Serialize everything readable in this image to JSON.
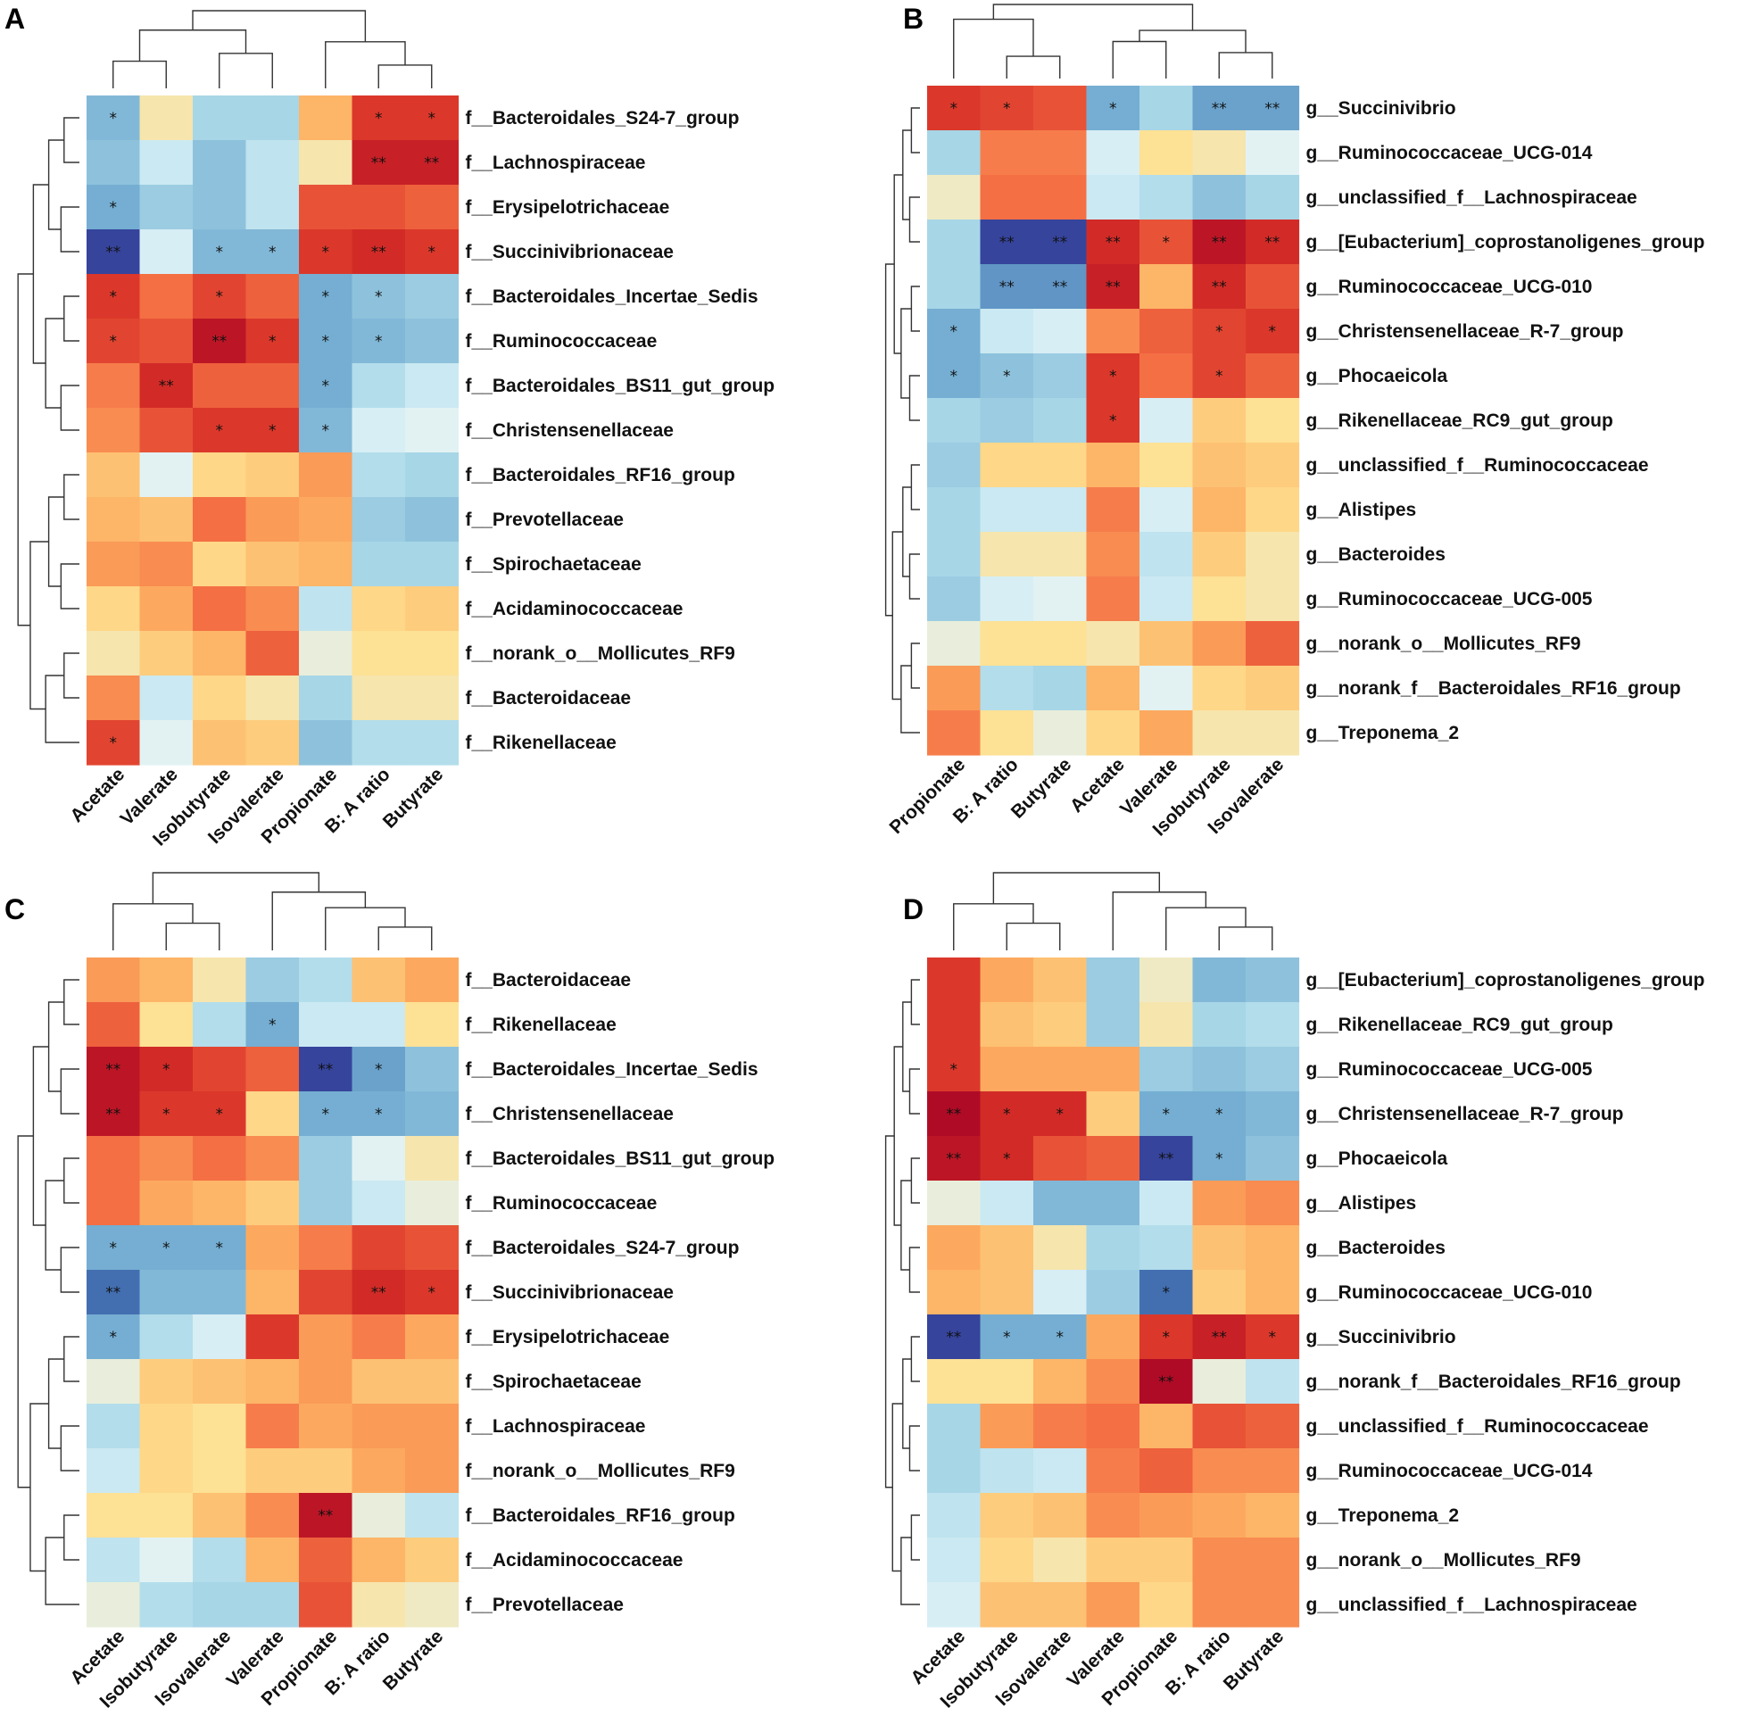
{
  "figure": {
    "colors": [
      "#313695",
      "#4575b4",
      "#74add1",
      "#abd9e9",
      "#e0f3f8",
      "#fee090",
      "#fdae61",
      "#f46d43",
      "#d73027",
      "#a50026"
    ]
  },
  "chart_data": [
    {
      "type": "heatmap",
      "letter": "A",
      "columns": [
        "Acetate",
        "Valerate",
        "Isobutyrate",
        "Isovalerate",
        "Propionate",
        "B: A ratio",
        "Butyrate"
      ],
      "rows": [
        "f__Bacteroidales_S24-7_group",
        "f__Lachnospiraceae",
        "f__Erysipelotrichaceae",
        "f__Succinivibrionaceae",
        "f__Bacteroidales_Incertae_Sedis",
        "f__Ruminococcaceae",
        "f__Bacteroidales_BS11_gut_group",
        "f__Christensenellaceae",
        "f__Bacteroidales_RF16_group",
        "f__Prevotellaceae",
        "f__Spirochaetaceae",
        "f__Acidaminococcaceae",
        "f__norank_o__Mollicutes_RF9",
        "f__Bacteroidaceae",
        "f__Rikenellaceae"
      ],
      "values": [
        [
          -0.5,
          0.05,
          -0.35,
          -0.35,
          0.3,
          0.75,
          0.75
        ],
        [
          -0.45,
          -0.2,
          -0.45,
          -0.25,
          0.05,
          0.85,
          0.85
        ],
        [
          -0.55,
          -0.4,
          -0.45,
          -0.25,
          0.65,
          0.65,
          0.6
        ],
        [
          -0.95,
          -0.15,
          -0.5,
          -0.5,
          0.75,
          0.8,
          0.75
        ],
        [
          0.75,
          0.55,
          0.7,
          0.6,
          -0.55,
          -0.45,
          -0.4
        ],
        [
          0.7,
          0.65,
          0.9,
          0.75,
          -0.55,
          -0.5,
          -0.45
        ],
        [
          0.5,
          0.8,
          0.6,
          0.6,
          -0.55,
          -0.3,
          -0.2
        ],
        [
          0.45,
          0.65,
          0.75,
          0.75,
          -0.5,
          -0.15,
          -0.1
        ],
        [
          0.25,
          -0.1,
          0.15,
          0.2,
          0.4,
          -0.3,
          -0.35
        ],
        [
          0.3,
          0.25,
          0.55,
          0.4,
          0.35,
          -0.4,
          -0.45
        ],
        [
          0.4,
          0.45,
          0.15,
          0.25,
          0.3,
          -0.35,
          -0.35
        ],
        [
          0.15,
          0.35,
          0.55,
          0.45,
          -0.25,
          0.15,
          0.2
        ],
        [
          0.05,
          0.2,
          0.3,
          0.6,
          -0.05,
          0.1,
          0.1
        ],
        [
          0.45,
          -0.2,
          0.15,
          0.05,
          -0.35,
          0.05,
          0.05
        ],
        [
          0.7,
          -0.1,
          0.25,
          0.2,
          -0.45,
          -0.3,
          -0.3
        ]
      ],
      "stars": [
        [
          "*",
          "",
          "",
          "",
          "",
          "*",
          "*"
        ],
        [
          "",
          "",
          "",
          "",
          "",
          "**",
          "**"
        ],
        [
          "*",
          "",
          "",
          "",
          "",
          "",
          ""
        ],
        [
          "**",
          "",
          "*",
          "*",
          "*",
          "**",
          "*"
        ],
        [
          "*",
          "",
          "*",
          "",
          "*",
          "*",
          ""
        ],
        [
          "*",
          "",
          "**",
          "*",
          "*",
          "*",
          ""
        ],
        [
          "",
          "**",
          "",
          "",
          "*",
          "",
          ""
        ],
        [
          "",
          "",
          "*",
          "*",
          "*",
          "",
          ""
        ],
        [
          "",
          "",
          "",
          "",
          "",
          "",
          ""
        ],
        [
          "",
          "",
          "",
          "",
          "",
          "",
          ""
        ],
        [
          "",
          "",
          "",
          "",
          "",
          "",
          ""
        ],
        [
          "",
          "",
          "",
          "",
          "",
          "",
          ""
        ],
        [
          "",
          "",
          "",
          "",
          "",
          "",
          ""
        ],
        [
          "",
          "",
          "",
          "",
          "",
          "",
          ""
        ],
        [
          "*",
          "",
          "",
          "",
          "",
          "",
          ""
        ]
      ]
    },
    {
      "type": "heatmap",
      "letter": "B",
      "columns": [
        "Propionate",
        "B: A ratio",
        "Butyrate",
        "Acetate",
        "Valerate",
        "Isobutyrate",
        "Isovalerate"
      ],
      "rows": [
        "g__Succinivibrio",
        "g__Ruminococcaceae_UCG-014",
        "g__unclassified_f__Lachnospiraceae",
        "g__[Eubacterium]_coprostanoligenes_group",
        "g__Ruminococcaceae_UCG-010",
        "g__Christensenellaceae_R-7_group",
        "g__Phocaeicola",
        "g__Rikenellaceae_RC9_gut_group",
        "g__unclassified_f__Ruminococcaceae",
        "g__Alistipes",
        "g__Bacteroides",
        "g__Ruminococcaceae_UCG-005",
        "g__norank_o__Mollicutes_RF9",
        "g__norank_f__Bacteroidales_RF16_group",
        "g__Treponema_2"
      ],
      "values": [
        [
          0.75,
          0.7,
          0.65,
          -0.55,
          -0.35,
          -0.6,
          -0.6
        ],
        [
          -0.35,
          0.5,
          0.5,
          -0.15,
          0.1,
          0.05,
          -0.1
        ],
        [
          0.0,
          0.55,
          0.55,
          -0.2,
          -0.3,
          -0.45,
          -0.35
        ],
        [
          -0.35,
          -0.95,
          -0.95,
          0.8,
          0.65,
          0.9,
          0.8
        ],
        [
          -0.35,
          -0.65,
          -0.65,
          0.85,
          0.3,
          0.8,
          0.65
        ],
        [
          -0.55,
          -0.2,
          -0.15,
          0.45,
          0.6,
          0.7,
          0.75
        ],
        [
          -0.55,
          -0.45,
          -0.4,
          0.75,
          0.55,
          0.7,
          0.6
        ],
        [
          -0.35,
          -0.4,
          -0.35,
          0.75,
          -0.15,
          0.2,
          0.1
        ],
        [
          -0.4,
          0.15,
          0.15,
          0.3,
          0.1,
          0.25,
          0.2
        ],
        [
          -0.35,
          -0.2,
          -0.2,
          0.5,
          -0.15,
          0.3,
          0.15
        ],
        [
          -0.35,
          0.05,
          0.05,
          0.45,
          -0.25,
          0.2,
          0.05
        ],
        [
          -0.4,
          -0.15,
          -0.1,
          0.5,
          -0.2,
          0.1,
          0.05
        ],
        [
          -0.05,
          0.1,
          0.1,
          0.05,
          0.25,
          0.4,
          0.6
        ],
        [
          0.4,
          -0.3,
          -0.35,
          0.3,
          -0.1,
          0.15,
          0.2
        ],
        [
          0.5,
          0.1,
          -0.05,
          0.15,
          0.35,
          0.05,
          0.05
        ]
      ],
      "stars": [
        [
          "*",
          "*",
          "",
          "*",
          "",
          "**",
          "**"
        ],
        [
          "",
          "",
          "",
          "",
          "",
          "",
          ""
        ],
        [
          "",
          "",
          "",
          "",
          "",
          "",
          ""
        ],
        [
          "",
          "**",
          "**",
          "**",
          "*",
          "**",
          "**"
        ],
        [
          "",
          "**",
          "**",
          "**",
          "",
          "**",
          ""
        ],
        [
          "*",
          "",
          "",
          "",
          "",
          "*",
          "*"
        ],
        [
          "*",
          "*",
          "",
          "*",
          "",
          "*",
          ""
        ],
        [
          "",
          "",
          "",
          "*",
          "",
          "",
          ""
        ],
        [
          "",
          "",
          "",
          "",
          "",
          "",
          ""
        ],
        [
          "",
          "",
          "",
          "",
          "",
          "",
          ""
        ],
        [
          "",
          "",
          "",
          "",
          "",
          "",
          ""
        ],
        [
          "",
          "",
          "",
          "",
          "",
          "",
          ""
        ],
        [
          "",
          "",
          "",
          "",
          "",
          "",
          ""
        ],
        [
          "",
          "",
          "",
          "",
          "",
          "",
          ""
        ],
        [
          "",
          "",
          "",
          "",
          "",
          "",
          ""
        ]
      ]
    },
    {
      "type": "heatmap",
      "letter": "C",
      "columns": [
        "Acetate",
        "Isobutyrate",
        "Isovalerate",
        "Valerate",
        "Propionate",
        "B: A ratio",
        "Butyrate"
      ],
      "rows": [
        "f__Bacteroidaceae",
        "f__Rikenellaceae",
        "f__Bacteroidales_Incertae_Sedis",
        "f__Christensenellaceae",
        "f__Bacteroidales_BS11_gut_group",
        "f__Ruminococcaceae",
        "f__Bacteroidales_S24-7_group",
        "f__Succinivibrionaceae",
        "f__Erysipelotrichaceae",
        "f__Spirochaetaceae",
        "f__Lachnospiraceae",
        "f__norank_o__Mollicutes_RF9",
        "f__Bacteroidales_RF16_group",
        "f__Acidaminococcaceae",
        "f__Prevotellaceae"
      ],
      "values": [
        [
          0.4,
          0.3,
          0.05,
          -0.4,
          -0.3,
          0.25,
          0.35
        ],
        [
          0.6,
          0.1,
          -0.3,
          -0.55,
          -0.2,
          -0.2,
          0.1
        ],
        [
          0.9,
          0.8,
          0.7,
          0.6,
          -0.95,
          -0.6,
          -0.45
        ],
        [
          0.9,
          0.75,
          0.75,
          0.15,
          -0.55,
          -0.55,
          -0.5
        ],
        [
          0.55,
          0.45,
          0.55,
          0.45,
          -0.4,
          -0.1,
          0.05
        ],
        [
          0.55,
          0.35,
          0.3,
          0.2,
          -0.4,
          -0.2,
          -0.05
        ],
        [
          -0.55,
          -0.55,
          -0.55,
          0.35,
          0.5,
          0.7,
          0.65
        ],
        [
          -0.8,
          -0.5,
          -0.5,
          0.3,
          0.7,
          0.8,
          0.75
        ],
        [
          -0.55,
          -0.3,
          -0.15,
          0.75,
          0.4,
          0.5,
          0.35
        ],
        [
          -0.05,
          0.2,
          0.25,
          0.3,
          0.4,
          0.25,
          0.25
        ],
        [
          -0.3,
          0.15,
          0.1,
          0.5,
          0.35,
          0.4,
          0.4
        ],
        [
          -0.2,
          0.15,
          0.1,
          0.2,
          0.2,
          0.35,
          0.4
        ],
        [
          0.1,
          0.1,
          0.25,
          0.45,
          0.9,
          -0.05,
          -0.25
        ],
        [
          -0.25,
          -0.1,
          -0.3,
          0.3,
          0.6,
          0.3,
          0.2
        ],
        [
          -0.05,
          -0.3,
          -0.35,
          -0.35,
          0.65,
          0.05,
          0.0
        ]
      ],
      "stars": [
        [
          "",
          "",
          "",
          "",
          "",
          "",
          ""
        ],
        [
          "",
          "",
          "",
          "*",
          "",
          "",
          ""
        ],
        [
          "**",
          "*",
          "",
          "",
          "**",
          "*",
          ""
        ],
        [
          "**",
          "*",
          "*",
          "",
          "*",
          "*",
          ""
        ],
        [
          "",
          "",
          "",
          "",
          "",
          "",
          ""
        ],
        [
          "",
          "",
          "",
          "",
          "",
          "",
          ""
        ],
        [
          "*",
          "*",
          "*",
          "",
          "",
          "",
          ""
        ],
        [
          "**",
          "",
          "",
          "",
          "",
          "**",
          "*"
        ],
        [
          "*",
          "",
          "",
          "",
          "",
          "",
          ""
        ],
        [
          "",
          "",
          "",
          "",
          "",
          "",
          ""
        ],
        [
          "",
          "",
          "",
          "",
          "",
          "",
          ""
        ],
        [
          "",
          "",
          "",
          "",
          "",
          "",
          ""
        ],
        [
          "",
          "",
          "",
          "",
          "**",
          "",
          ""
        ],
        [
          "",
          "",
          "",
          "",
          "",
          "",
          ""
        ],
        [
          "",
          "",
          "",
          "",
          "",
          "",
          ""
        ]
      ]
    },
    {
      "type": "heatmap",
      "letter": "D",
      "columns": [
        "Acetate",
        "Isobutyrate",
        "Isovalerate",
        "Valerate",
        "Propionate",
        "B: A ratio",
        "Butyrate"
      ],
      "rows": [
        "g__[Eubacterium]_coprostanoligenes_group",
        "g__Rikenellaceae_RC9_gut_group",
        "g__Ruminococcaceae_UCG-005",
        "g__Christensenellaceae_R-7_group",
        "g__Phocaeicola",
        "g__Alistipes",
        "g__Bacteroides",
        "g__Ruminococcaceae_UCG-010",
        "g__Succinivibrio",
        "g__norank_f__Bacteroidales_RF16_group",
        "g__unclassified_f__Ruminococcaceae",
        "g__Ruminococcaceae_UCG-014",
        "g__Treponema_2",
        "g__norank_o__Mollicutes_RF9",
        "g__unclassified_f__Lachnospiraceae"
      ],
      "values": [
        [
          0.75,
          0.35,
          0.25,
          -0.4,
          0.0,
          -0.5,
          -0.45
        ],
        [
          0.75,
          0.25,
          0.2,
          -0.4,
          0.05,
          -0.35,
          -0.3
        ],
        [
          0.75,
          0.35,
          0.35,
          0.35,
          -0.4,
          -0.45,
          -0.4
        ],
        [
          0.95,
          0.8,
          0.8,
          0.2,
          -0.55,
          -0.55,
          -0.5
        ],
        [
          0.9,
          0.8,
          0.65,
          0.6,
          -0.95,
          -0.55,
          -0.45
        ],
        [
          -0.05,
          -0.2,
          -0.5,
          -0.5,
          -0.2,
          0.4,
          0.45
        ],
        [
          0.35,
          0.25,
          0.05,
          -0.35,
          -0.3,
          0.25,
          0.3
        ],
        [
          0.3,
          0.25,
          -0.15,
          -0.4,
          -0.8,
          0.2,
          0.3
        ],
        [
          -0.95,
          -0.55,
          -0.55,
          0.35,
          0.75,
          0.85,
          0.75
        ],
        [
          0.1,
          0.1,
          0.3,
          0.45,
          0.95,
          -0.05,
          -0.25
        ],
        [
          -0.35,
          0.4,
          0.5,
          0.55,
          0.3,
          0.65,
          0.6
        ],
        [
          -0.35,
          -0.25,
          -0.2,
          0.5,
          0.6,
          0.45,
          0.45
        ],
        [
          -0.25,
          0.2,
          0.25,
          0.45,
          0.4,
          0.35,
          0.3
        ],
        [
          -0.2,
          0.15,
          0.05,
          0.2,
          0.2,
          0.45,
          0.45
        ],
        [
          -0.15,
          0.25,
          0.25,
          0.4,
          0.15,
          0.45,
          0.45
        ]
      ],
      "stars": [
        [
          "",
          "",
          "",
          "",
          "",
          "",
          ""
        ],
        [
          "",
          "",
          "",
          "",
          "",
          "",
          ""
        ],
        [
          "*",
          "",
          "",
          "",
          "",
          "",
          ""
        ],
        [
          "**",
          "*",
          "*",
          "",
          "*",
          "*",
          ""
        ],
        [
          "**",
          "*",
          "",
          "",
          "**",
          "*",
          ""
        ],
        [
          "",
          "",
          "",
          "",
          "",
          "",
          ""
        ],
        [
          "",
          "",
          "",
          "",
          "",
          "",
          ""
        ],
        [
          "",
          "",
          "",
          "",
          "*",
          "",
          ""
        ],
        [
          "**",
          "*",
          "*",
          "",
          "*",
          "**",
          "*"
        ],
        [
          "",
          "",
          "",
          "",
          "**",
          "",
          ""
        ],
        [
          "",
          "",
          "",
          "",
          "",
          "",
          ""
        ],
        [
          "",
          "",
          "",
          "",
          "",
          "",
          ""
        ],
        [
          "",
          "",
          "",
          "",
          "",
          "",
          ""
        ],
        [
          "",
          "",
          "",
          "",
          "",
          "",
          ""
        ],
        [
          "",
          "",
          "",
          "",
          "",
          "",
          ""
        ]
      ]
    }
  ]
}
